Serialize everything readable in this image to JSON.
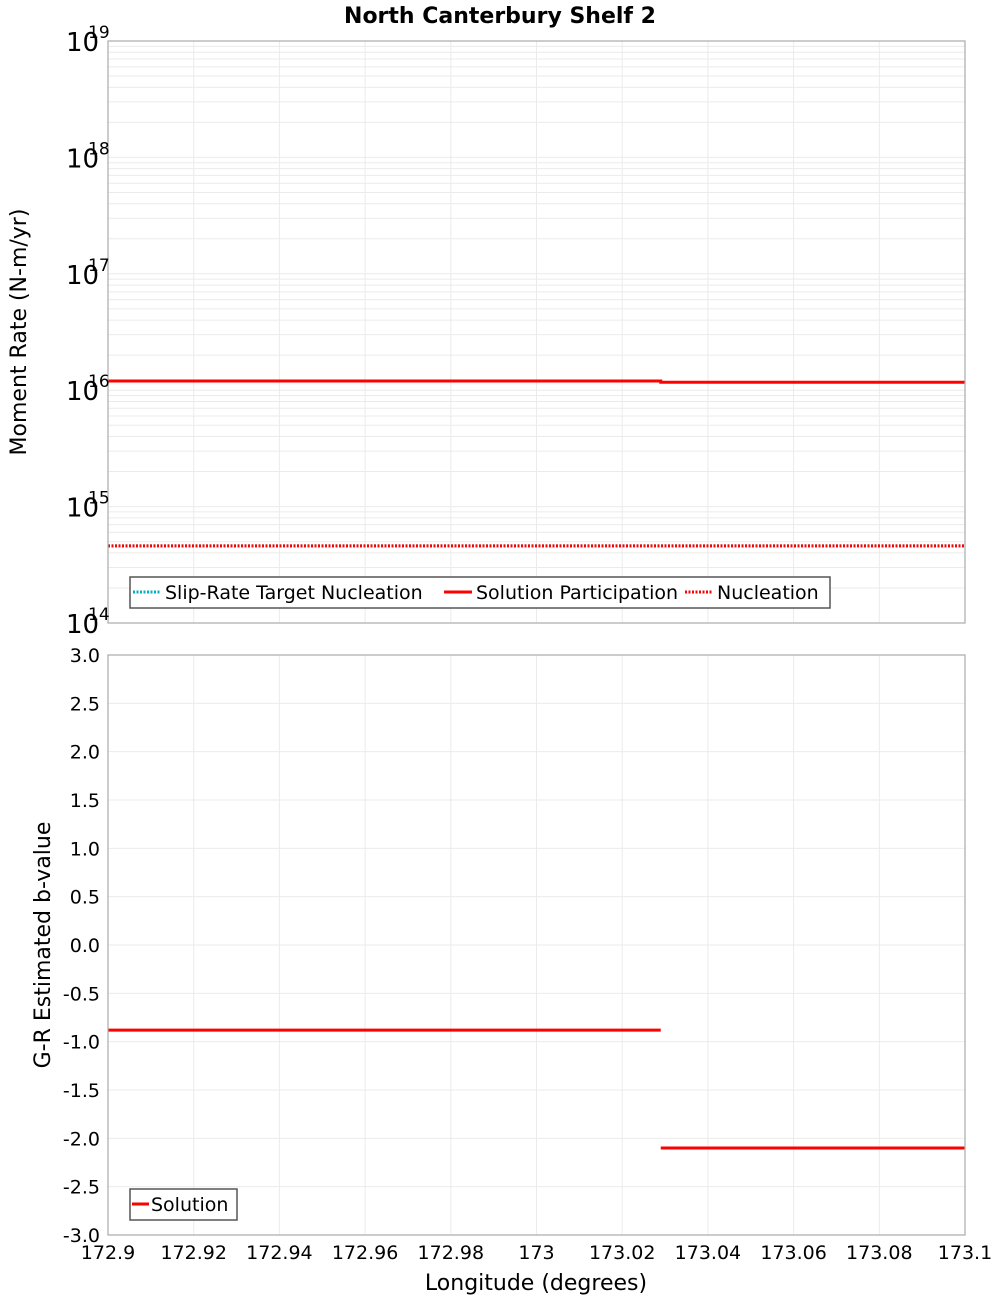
{
  "chart_data": [
    {
      "type": "line",
      "panel": "top",
      "title": "North Canterbury Shelf 2",
      "xlabel": "Longitude (degrees)",
      "ylabel": "Moment Rate (N-m/yr)",
      "yscale": "log",
      "ylim": [
        100000000000000.0,
        1e+19
      ],
      "xlim": [
        172.9,
        173.1
      ],
      "ytick_labels": [
        {
          "base": "10",
          "exp": "19",
          "value": 1e+19
        },
        {
          "base": "10",
          "exp": "18",
          "value": 1e+18
        },
        {
          "base": "10",
          "exp": "17",
          "value": 1e+17
        },
        {
          "base": "10",
          "exp": "16",
          "value": 1e+16
        },
        {
          "base": "10",
          "exp": "15",
          "value": 1000000000000000.0
        },
        {
          "base": "10",
          "exp": "14",
          "value": 100000000000000.0
        }
      ],
      "grid": true,
      "legend_position": "lower-left",
      "series": [
        {
          "name": "Slip-Rate Target Nucleation",
          "color": "#00b0c0",
          "style": "dotted",
          "x": [
            172.9,
            173.029,
            173.029,
            173.1
          ],
          "y": [
            460000000000000.0,
            460000000000000.0,
            460000000000000.0,
            460000000000000.0
          ]
        },
        {
          "name": "Solution Participation",
          "color": "#ff0000",
          "style": "solid",
          "x": [
            172.9,
            173.029,
            173.029,
            173.1
          ],
          "y": [
            1.2e+16,
            1.2e+16,
            1.17e+16,
            1.17e+16
          ]
        },
        {
          "name": "Nucleation",
          "color": "#ff0000",
          "style": "dotted",
          "x": [
            172.9,
            173.029,
            173.029,
            173.1
          ],
          "y": [
            460000000000000.0,
            460000000000000.0,
            460000000000000.0,
            460000000000000.0
          ]
        }
      ]
    },
    {
      "type": "line",
      "panel": "bottom",
      "xlabel": "Longitude (degrees)",
      "ylabel": "G-R Estimated b-value",
      "ylim": [
        -3.0,
        3.0
      ],
      "xlim": [
        172.9,
        173.1
      ],
      "yticks": [
        "3.0",
        "2.5",
        "2.0",
        "1.5",
        "1.0",
        "0.5",
        "0.0",
        "-0.5",
        "-1.0",
        "-1.5",
        "-2.0",
        "-2.5",
        "-3.0"
      ],
      "xticks": [
        "172.9",
        "172.92",
        "172.94",
        "172.96",
        "172.98",
        "173",
        "173.02",
        "173.04",
        "173.06",
        "173.08",
        "173.1"
      ],
      "grid": true,
      "legend_position": "lower-left",
      "series": [
        {
          "name": "Solution",
          "color": "#ff0000",
          "style": "solid",
          "segments": [
            {
              "x": [
                172.9,
                173.029
              ],
              "y": [
                -0.88,
                -0.88
              ]
            },
            {
              "x": [
                173.029,
                173.1
              ],
              "y": [
                -2.1,
                -2.1
              ]
            }
          ]
        }
      ]
    }
  ],
  "labels": {
    "title": "North Canterbury Shelf 2",
    "top_ylabel": "Moment Rate (N-m/yr)",
    "bottom_ylabel": "G-R Estimated b-value",
    "xlabel": "Longitude (degrees)",
    "legend_top": [
      "Slip-Rate Target Nucleation",
      "Solution Participation",
      "Nucleation"
    ],
    "legend_bottom": [
      "Solution"
    ]
  }
}
